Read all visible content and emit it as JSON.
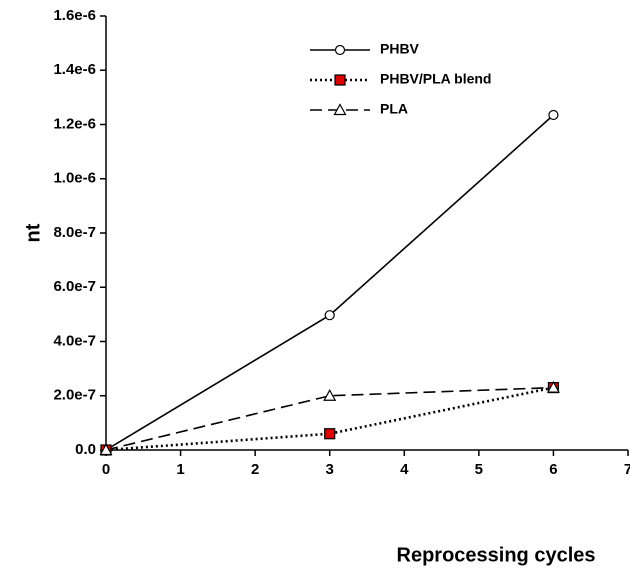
{
  "chart_data": {
    "type": "line",
    "x_label": "Reprocessing cycles",
    "y_label": "nt",
    "x": [
      0,
      3,
      6
    ],
    "series": [
      {
        "name": "PHBV",
        "color": "#000000",
        "marker": "circle",
        "marker_fill": "#ffffff",
        "dash": "solid",
        "values": [
          0,
          4.97e-07,
          1.235e-06
        ]
      },
      {
        "name": "PHBV/PLA blend",
        "color": "#000000",
        "marker": "square",
        "marker_fill": "#e00000",
        "dash": "dotted",
        "values": [
          0,
          6e-08,
          2.3e-07
        ]
      },
      {
        "name": "PLA",
        "color": "#000000",
        "marker": "triangle",
        "marker_fill": "#ffffff",
        "dash": "dashed",
        "values": [
          0,
          2e-07,
          2.3e-07
        ]
      }
    ],
    "xlim": [
      0,
      7
    ],
    "xticks": [
      0,
      1,
      2,
      3,
      4,
      5,
      6,
      7
    ],
    "ylim": [
      0,
      1.6e-06
    ],
    "yticks": [
      {
        "value": 0,
        "label": "0.0"
      },
      {
        "value": 2e-07,
        "label": "2.0e-7"
      },
      {
        "value": 4e-07,
        "label": "4.0e-7"
      },
      {
        "value": 6e-07,
        "label": "6.0e-7"
      },
      {
        "value": 8e-07,
        "label": "8.0e-7"
      },
      {
        "value": 1e-06,
        "label": "1.0e-6"
      },
      {
        "value": 1.2e-06,
        "label": "1.2e-6"
      },
      {
        "value": 1.4e-06,
        "label": "1.4e-6"
      },
      {
        "value": 1.6e-06,
        "label": "1.6e-6"
      }
    ],
    "legend": "upper center",
    "grid": false
  }
}
